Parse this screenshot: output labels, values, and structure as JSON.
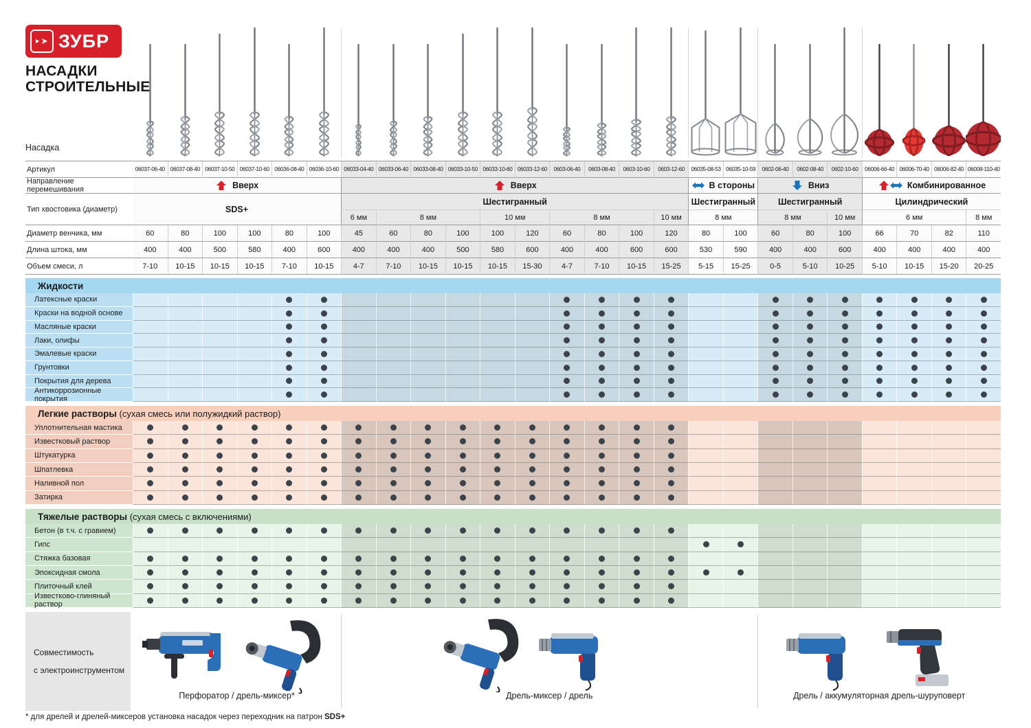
{
  "brand": {
    "logo_text": "ЗУБР",
    "title_line1": "НАСАДКИ",
    "title_line2": "СТРОИТЕЛЬНЫЕ"
  },
  "row_labels": {
    "nasadka": "Насадка",
    "article": "Артикул",
    "direction": "Направление перемешивания",
    "shank": "Тип хвостовика (диаметр)",
    "venchik": "Диаметр венчика, мм",
    "shtok": "Длина штока, мм",
    "volume": "Объем смеси, л"
  },
  "groups": [
    {
      "direction": "Вверх",
      "arrows": [
        "up"
      ],
      "shank": "SDS+",
      "cols": 6,
      "merged_shank": true,
      "diameters": []
    },
    {
      "direction": "Вверх",
      "arrows": [
        "up"
      ],
      "shank": "Шестигранный",
      "cols": 10,
      "merged_shank": false,
      "diameters": [
        {
          "label": "6 мм",
          "span": 1
        },
        {
          "label": "8 мм",
          "span": 3
        },
        {
          "label": "10 мм",
          "span": 2
        },
        {
          "label": "8 мм",
          "span": 3
        },
        {
          "label": "10 мм",
          "span": 1
        }
      ]
    },
    {
      "direction": "В стороны",
      "arrows": [
        "leftright"
      ],
      "shank": "Шестигранный",
      "cols": 2,
      "merged_shank": false,
      "diameters": [
        {
          "label": "8 мм",
          "span": 2
        }
      ]
    },
    {
      "direction": "Вниз",
      "arrows": [
        "down"
      ],
      "shank": "Шестигранный",
      "cols": 3,
      "merged_shank": false,
      "diameters": [
        {
          "label": "8 мм",
          "span": 2
        },
        {
          "label": "10 мм",
          "span": 1
        }
      ]
    },
    {
      "direction": "Комбинированное",
      "arrows": [
        "up",
        "leftright"
      ],
      "shank": "Цилиндрический",
      "cols": 4,
      "merged_shank": false,
      "diameters": [
        {
          "label": "6 мм",
          "span": 3
        },
        {
          "label": "8 мм",
          "span": 1
        }
      ]
    }
  ],
  "columns": [
    {
      "article": "06037-06-40",
      "venchik": "60",
      "shtok": "400",
      "volume": "7-10",
      "mixer": "spiral"
    },
    {
      "article": "06037-08-40",
      "venchik": "80",
      "shtok": "400",
      "volume": "10-15",
      "mixer": "spiral"
    },
    {
      "article": "06037-10-50",
      "venchik": "100",
      "shtok": "500",
      "volume": "10-15",
      "mixer": "spiral"
    },
    {
      "article": "06037-10-60",
      "venchik": "100",
      "shtok": "580",
      "volume": "10-15",
      "mixer": "spiral"
    },
    {
      "article": "06036-08-40",
      "venchik": "80",
      "shtok": "400",
      "volume": "7-10",
      "mixer": "spiral"
    },
    {
      "article": "06036-10-60",
      "venchik": "100",
      "shtok": "600",
      "volume": "10-15",
      "mixer": "spiral"
    },
    {
      "article": "06033-04-40",
      "venchik": "45",
      "shtok": "400",
      "volume": "4-7",
      "mixer": "spiral"
    },
    {
      "article": "06033-06-40",
      "venchik": "60",
      "shtok": "400",
      "volume": "7-10",
      "mixer": "spiral"
    },
    {
      "article": "06033-08-40",
      "venchik": "80",
      "shtok": "400",
      "volume": "10-15",
      "mixer": "spiral"
    },
    {
      "article": "06033-10-50",
      "venchik": "100",
      "shtok": "500",
      "volume": "10-15",
      "mixer": "spiral"
    },
    {
      "article": "06033-10-60",
      "venchik": "100",
      "shtok": "580",
      "volume": "10-15",
      "mixer": "spiral"
    },
    {
      "article": "06033-12-60",
      "venchik": "120",
      "shtok": "600",
      "volume": "15-30",
      "mixer": "spiral"
    },
    {
      "article": "0603-06-40",
      "venchik": "60",
      "shtok": "400",
      "volume": "4-7",
      "mixer": "spiral-small"
    },
    {
      "article": "0603-08-40",
      "venchik": "80",
      "shtok": "400",
      "volume": "7-10",
      "mixer": "spiral-small"
    },
    {
      "article": "0603-10-60",
      "venchik": "100",
      "shtok": "600",
      "volume": "10-15",
      "mixer": "spiral-small"
    },
    {
      "article": "0603-12-60",
      "venchik": "120",
      "shtok": "600",
      "volume": "15-25",
      "mixer": "spiral-small"
    },
    {
      "article": "06035-08-53",
      "venchik": "80",
      "shtok": "530",
      "volume": "5-15",
      "mixer": "basket"
    },
    {
      "article": "06035-10-59",
      "venchik": "100",
      "shtok": "590",
      "volume": "15-25",
      "mixer": "basket"
    },
    {
      "article": "0602-06-40",
      "venchik": "60",
      "shtok": "400",
      "volume": "0-5",
      "mixer": "teardrop"
    },
    {
      "article": "0602-08-40",
      "venchik": "80",
      "shtok": "400",
      "volume": "5-10",
      "mixer": "teardrop"
    },
    {
      "article": "0602-10-60",
      "venchik": "100",
      "shtok": "600",
      "volume": "10-25",
      "mixer": "teardrop"
    },
    {
      "article": "06006-66-40",
      "venchik": "66",
      "shtok": "400",
      "volume": "5-10",
      "mixer": "ball"
    },
    {
      "article": "06006-70-40",
      "venchik": "70",
      "shtok": "400",
      "volume": "10-15",
      "mixer": "ball-bright"
    },
    {
      "article": "06006-82-40",
      "venchik": "82",
      "shtok": "400",
      "volume": "15-20",
      "mixer": "ball"
    },
    {
      "article": "06008-110-40",
      "venchik": "110",
      "shtok": "400",
      "volume": "20-25",
      "mixer": "ball"
    }
  ],
  "sections": [
    {
      "title": "Жидкости",
      "subtitle": "",
      "theme": "blue",
      "rows": [
        {
          "label": "Латексные краски",
          "dots": [
            4,
            5,
            12,
            13,
            14,
            15,
            18,
            19,
            20,
            21,
            22,
            23,
            24
          ]
        },
        {
          "label": "Краски на водной основе",
          "dots": [
            4,
            5,
            12,
            13,
            14,
            15,
            18,
            19,
            20,
            21,
            22,
            23,
            24
          ]
        },
        {
          "label": "Масляные краски",
          "dots": [
            4,
            5,
            12,
            13,
            14,
            15,
            18,
            19,
            20,
            21,
            22,
            23,
            24
          ]
        },
        {
          "label": "Лаки, олифы",
          "dots": [
            4,
            5,
            12,
            13,
            14,
            15,
            18,
            19,
            20,
            21,
            22,
            23,
            24
          ]
        },
        {
          "label": "Эмалевые краски",
          "dots": [
            4,
            5,
            12,
            13,
            14,
            15,
            18,
            19,
            20,
            21,
            22,
            23,
            24
          ]
        },
        {
          "label": "Грунтовки",
          "dots": [
            4,
            5,
            12,
            13,
            14,
            15,
            18,
            19,
            20,
            21,
            22,
            23,
            24
          ]
        },
        {
          "label": "Покрытия для дерева",
          "dots": [
            4,
            5,
            12,
            13,
            14,
            15,
            18,
            19,
            20,
            21,
            22,
            23,
            24
          ]
        },
        {
          "label": "Антикоррозионные покрытия",
          "dots": [
            4,
            5,
            12,
            13,
            14,
            15,
            18,
            19,
            20,
            21,
            22,
            23,
            24
          ]
        }
      ]
    },
    {
      "title": "Легкие растворы",
      "subtitle": "(сухая смесь или полужидкий раствор)",
      "theme": "peach",
      "rows": [
        {
          "label": "Уплотнительная мастика",
          "dots": [
            0,
            1,
            2,
            3,
            4,
            5,
            6,
            7,
            8,
            9,
            10,
            11,
            12,
            13,
            14,
            15
          ]
        },
        {
          "label": "Известковый раствор",
          "dots": [
            0,
            1,
            2,
            3,
            4,
            5,
            6,
            7,
            8,
            9,
            10,
            11,
            12,
            13,
            14,
            15
          ]
        },
        {
          "label": "Штукатурка",
          "dots": [
            0,
            1,
            2,
            3,
            4,
            5,
            6,
            7,
            8,
            9,
            10,
            11,
            12,
            13,
            14,
            15
          ]
        },
        {
          "label": "Шпатлевка",
          "dots": [
            0,
            1,
            2,
            3,
            4,
            5,
            6,
            7,
            8,
            9,
            10,
            11,
            12,
            13,
            14,
            15
          ]
        },
        {
          "label": "Наливной пол",
          "dots": [
            0,
            1,
            2,
            3,
            4,
            5,
            6,
            7,
            8,
            9,
            10,
            11,
            12,
            13,
            14,
            15
          ]
        },
        {
          "label": "Затирка",
          "dots": [
            0,
            1,
            2,
            3,
            4,
            5,
            6,
            7,
            8,
            9,
            10,
            11,
            12,
            13,
            14,
            15
          ]
        }
      ]
    },
    {
      "title": "Тяжелые растворы",
      "subtitle": "(сухая смесь с включениями)",
      "theme": "green",
      "rows": [
        {
          "label": "Бетон (в т.ч. с гравием)",
          "dots": [
            0,
            1,
            2,
            3,
            4,
            5,
            6,
            7,
            8,
            9,
            10,
            11,
            12,
            13,
            14,
            15
          ]
        },
        {
          "label": "Гипс",
          "dots": [
            16,
            17
          ]
        },
        {
          "label": "Стяжка базовая",
          "dots": [
            0,
            1,
            2,
            3,
            4,
            5,
            6,
            7,
            8,
            9,
            10,
            11,
            12,
            13,
            14,
            15
          ]
        },
        {
          "label": "Эпоксидная смола",
          "dots": [
            0,
            1,
            2,
            3,
            4,
            5,
            6,
            7,
            8,
            9,
            10,
            11,
            12,
            13,
            14,
            15,
            16,
            17
          ]
        },
        {
          "label": "Плиточный клей",
          "dots": [
            0,
            1,
            2,
            3,
            4,
            5,
            6,
            7,
            8,
            9,
            10,
            11,
            12,
            13,
            14,
            15
          ]
        },
        {
          "label": "Известково-глиняный раствор",
          "dots": [
            0,
            1,
            2,
            3,
            4,
            5,
            6,
            7,
            8,
            9,
            10,
            11,
            12,
            13,
            14,
            15
          ]
        }
      ]
    }
  ],
  "compatibility": {
    "label_line1": "Совместимость",
    "label_line2": "с электроинструментом",
    "groups": [
      {
        "label": "Перфоратор / дрель-миксер*",
        "span_cols": 6,
        "tools": [
          "perforator",
          "mixer-drill"
        ]
      },
      {
        "label": "Дрель-миксер / дрель",
        "span_cols": 12,
        "tools": [
          "mixer-drill",
          "drill"
        ]
      },
      {
        "label": "Дрель / аккумуляторная дрель-шуруповерт",
        "span_cols": 7,
        "tools": [
          "drill",
          "cordless"
        ]
      }
    ]
  },
  "footnote": {
    "text": "* для дрелей и дрелей-миксеров установка насадок через переходник на патрон ",
    "bold": "SDS+"
  },
  "colors": {
    "accent_red": "#d6212a",
    "arrow_blue": "#1b75bc",
    "dot": "#3c434b",
    "themes": {
      "blue": {
        "title": "#a4d7f0",
        "label": "#badff3",
        "light": "#d8ecf8",
        "dark": "#c6d9e2"
      },
      "peach": {
        "title": "#f8cebc",
        "label": "#f1cebf",
        "light": "#fbe4d9",
        "dark": "#d8c6bd"
      },
      "green": {
        "title": "#c7e1c9",
        "label": "#cde4ce",
        "light": "#e9f4e9",
        "dark": "#d0dccd"
      }
    }
  }
}
